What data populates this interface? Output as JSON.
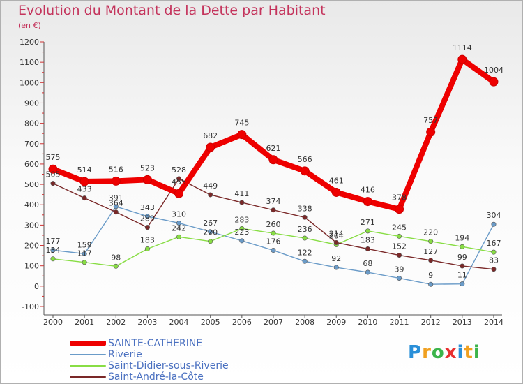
{
  "chart_data": {
    "type": "line",
    "title": "Evolution du Montant de la Dette par Habitant",
    "subtitle": "(en €)",
    "xlabel": "",
    "ylabel": "",
    "x": [
      "2000",
      "2001",
      "2002",
      "2003",
      "2004",
      "2005",
      "2006",
      "2007",
      "2008",
      "2009",
      "2010",
      "2011",
      "2012",
      "2013",
      "2014"
    ],
    "ylim": [
      -100,
      1200
    ],
    "yticks": [
      -100,
      0,
      100,
      200,
      300,
      400,
      500,
      600,
      700,
      800,
      900,
      1000,
      1100,
      1200
    ],
    "grid": false,
    "legend_position": "bottom-left",
    "series": [
      {
        "name": "SAINTE-CATHERINE",
        "color": "#ee0000",
        "values": [
          575,
          514,
          516,
          523,
          455,
          682,
          745,
          621,
          566,
          461,
          416,
          378,
          757,
          1114,
          1004
        ],
        "labels": [
          "575",
          "514",
          "516",
          "523",
          "455",
          "682",
          "745",
          "621",
          "566",
          "461",
          "416",
          "378",
          "757",
          "1114",
          "1004"
        ]
      },
      {
        "name": "Riverie",
        "color": "#6a9bc8",
        "values": [
          177,
          159,
          391,
          343,
          310,
          267,
          223,
          176,
          122,
          92,
          68,
          39,
          9,
          11,
          304
        ],
        "labels": [
          "177",
          "159",
          "391",
          "343",
          "310",
          "267",
          "223",
          "176",
          "122",
          "92",
          "68",
          "39",
          "9",
          "11",
          "304"
        ]
      },
      {
        "name": "Saint-Didier-sous-Riverie",
        "color": "#88dd44",
        "values": [
          134,
          117,
          98,
          183,
          242,
          220,
          283,
          260,
          236,
          204,
          271,
          245,
          220,
          194,
          167
        ],
        "labels": [
          "134",
          "117",
          "98",
          "183",
          "242",
          "220",
          "283",
          "260",
          "236",
          "204",
          "271",
          "245",
          "220",
          "194",
          "167"
        ]
      },
      {
        "name": "Saint-André-la-Côte",
        "color": "#7a2828",
        "values": [
          505,
          433,
          364,
          289,
          528,
          449,
          411,
          374,
          338,
          214,
          183,
          152,
          127,
          99,
          83
        ],
        "labels": [
          "505",
          "433",
          "364",
          "289",
          "528",
          "449",
          "411",
          "374",
          "338",
          "214",
          "183",
          "152",
          "127",
          "99",
          "83"
        ]
      }
    ]
  },
  "brand": {
    "letters": [
      "P",
      "r",
      "o",
      "x",
      "i",
      "t",
      "i"
    ],
    "colors": [
      "#2a8fd8",
      "#f0a020",
      "#3cb44b",
      "#e83030",
      "#2a8fd8",
      "#f0a020",
      "#3cb44b"
    ]
  }
}
